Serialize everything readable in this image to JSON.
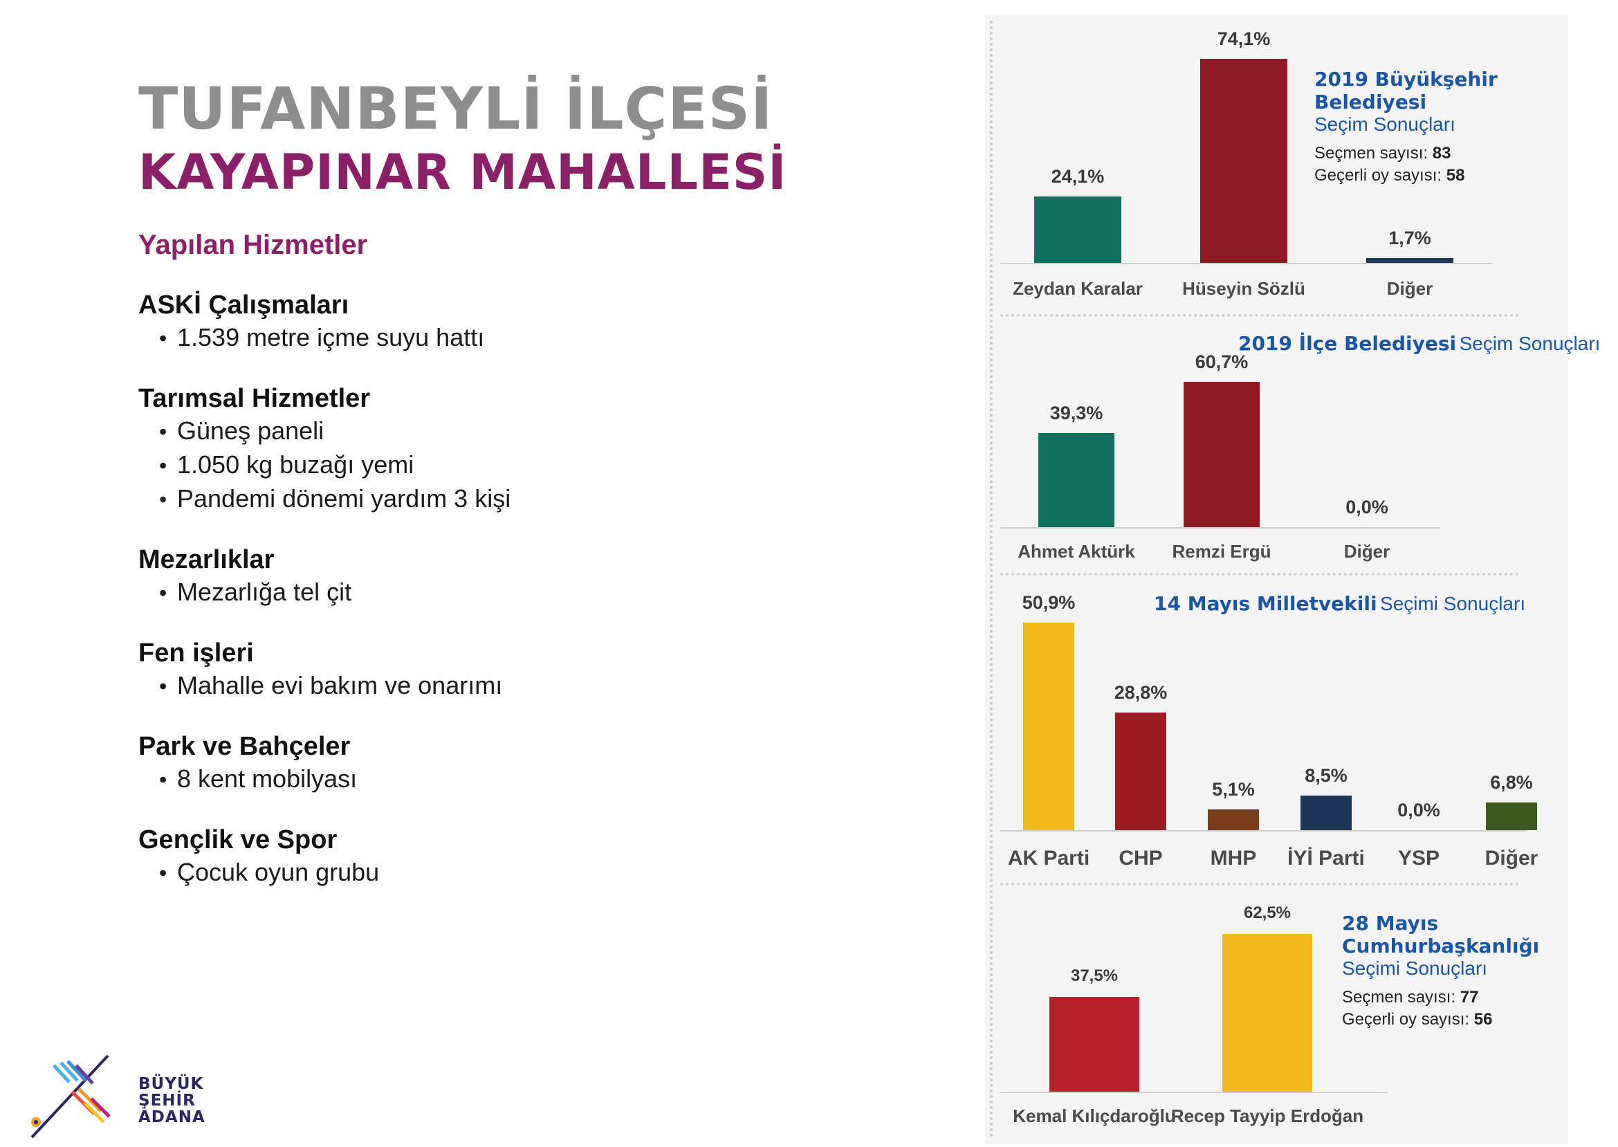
{
  "header": {
    "district": "TUFANBEYLİ İLÇESİ",
    "neighborhood": "KAYAPINAR MAHALLESİ"
  },
  "services": {
    "heading": "Yapılan Hizmetler",
    "categories": [
      {
        "title": "ASKİ Çalışmaları",
        "items": [
          "1.539 metre içme suyu hattı"
        ]
      },
      {
        "title": "Tarımsal Hizmetler",
        "items": [
          "Güneş paneli",
          "1.050 kg buzağı yemi",
          "Pandemi dönemi yardım 3 kişi"
        ]
      },
      {
        "title": "Mezarlıklar",
        "items": [
          "Mezarlığa tel çit"
        ]
      },
      {
        "title": "Fen işleri",
        "items": [
          "Mahalle evi bakım ve onarımı"
        ]
      },
      {
        "title": "Park ve Bahçeler",
        "items": [
          "8 kent mobilyası"
        ]
      },
      {
        "title": "Gençlik ve Spor",
        "items": [
          "Çocuk oyun grubu"
        ]
      }
    ]
  },
  "logo": {
    "line1": "BÜYÜK",
    "line2": "ŞEHİR",
    "line3": "ADANA"
  },
  "colors": {
    "district_gray": "#8e8e8e",
    "brand_purple": "#8b1f68",
    "legend_blue": "#1a56a6",
    "green": "#12705e",
    "dark_red": "#8c1a1e",
    "navy": "#1d3557",
    "yellow": "#f2b91c",
    "red": "#a51e23",
    "brown": "#7a3f1a",
    "olive": "#3d5a1e",
    "kk_red": "#b8202a",
    "panel_bg": "#f4f4f4"
  },
  "chart_data": [
    {
      "type": "bar",
      "title_bold": "2019 Büyükşehir Belediyesi",
      "title_light": "Seçim Sonuçları",
      "stats": [
        {
          "label": "Seçmen sayısı:",
          "value": "83"
        },
        {
          "label": "Geçerli oy sayısı:",
          "value": "58"
        }
      ],
      "categories": [
        "Zeydan Karalar",
        "Hüseyin Sözlü",
        "Diğer"
      ],
      "values": [
        24.1,
        74.1,
        1.7
      ],
      "value_labels": [
        "24,1%",
        "74,1%",
        "1,7%"
      ],
      "colors": [
        "#12705e",
        "#8c1a1e",
        "#1d3557"
      ],
      "ylim": [
        0,
        74.1
      ]
    },
    {
      "type": "bar",
      "title_bold": "2019 İlçe Belediyesi",
      "title_light": "Seçim Sonuçları",
      "categories": [
        "Ahmet Aktürk",
        "Remzi Ergü",
        "Diğer"
      ],
      "values": [
        39.3,
        60.7,
        0.0
      ],
      "value_labels": [
        "39,3%",
        "60,7%",
        "0,0%"
      ],
      "colors": [
        "#12705e",
        "#8c1a1e",
        "#1d3557"
      ],
      "ylim": [
        0,
        60.7
      ]
    },
    {
      "type": "bar",
      "title_bold": "14 Mayıs Milletvekili",
      "title_light": "Seçimi Sonuçları",
      "categories": [
        "AK Parti",
        "CHP",
        "MHP",
        "İYİ Parti",
        "YSP",
        "Diğer"
      ],
      "values": [
        50.9,
        28.8,
        5.1,
        8.5,
        0.0,
        6.8
      ],
      "value_labels": [
        "50,9%",
        "28,8%",
        "5,1%",
        "8,5%",
        "0,0%",
        "6,8%"
      ],
      "colors": [
        "#f2b91c",
        "#9b1c21",
        "#7a3f1a",
        "#1d3557",
        "#7a2a7a",
        "#3d5a1e"
      ],
      "ylim": [
        0,
        50.9
      ]
    },
    {
      "type": "bar",
      "title_bold_1": "28 Mayıs",
      "title_bold_2": "Cumhurbaşkanlığı",
      "title_light": "Seçimi Sonuçları",
      "stats": [
        {
          "label": "Seçmen sayısı:",
          "value": "77"
        },
        {
          "label": "Geçerli oy sayısı:",
          "value": "56"
        }
      ],
      "categories": [
        "Kemal Kılıçdaroğlu",
        "Recep Tayyip Erdoğan"
      ],
      "values": [
        37.5,
        62.5
      ],
      "value_labels": [
        "37,5%",
        "62,5%"
      ],
      "colors": [
        "#b8202a",
        "#f2b91c"
      ],
      "ylim": [
        0,
        62.5
      ]
    }
  ]
}
